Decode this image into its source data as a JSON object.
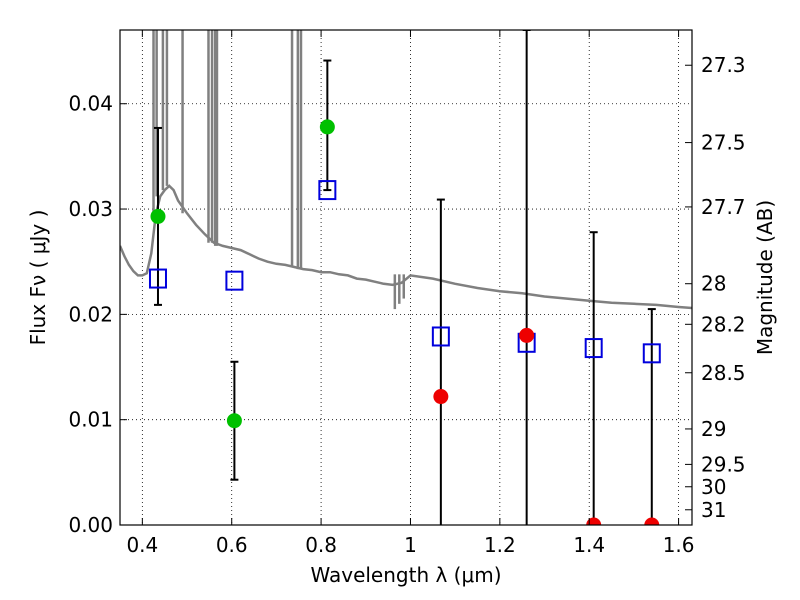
{
  "chart_data": {
    "type": "scatter",
    "xlabel": "Wavelength  λ (μm)",
    "ylabel": "Flux  Fν  ( μJy )",
    "ylabel_right": "Magnitude (AB)",
    "xlim": [
      0.35,
      1.63
    ],
    "ylim": [
      0.0,
      0.047
    ],
    "grid": true,
    "x_ticks": [
      {
        "value": 0.4,
        "label": "0.4"
      },
      {
        "value": 0.6,
        "label": "0.6"
      },
      {
        "value": 0.8,
        "label": "0.8"
      },
      {
        "value": 1.0,
        "label": "1"
      },
      {
        "value": 1.2,
        "label": "1.2"
      },
      {
        "value": 1.4,
        "label": "1.4"
      },
      {
        "value": 1.6,
        "label": "1.6"
      }
    ],
    "y_ticks": [
      {
        "value": 0.0,
        "label": "0.00"
      },
      {
        "value": 0.01,
        "label": "0.01"
      },
      {
        "value": 0.02,
        "label": "0.02"
      },
      {
        "value": 0.03,
        "label": "0.03"
      },
      {
        "value": 0.04,
        "label": "0.04"
      }
    ],
    "y_ticks_right": [
      {
        "value": 27.3,
        "label": "27.3"
      },
      {
        "value": 27.5,
        "label": "27.5"
      },
      {
        "value": 27.7,
        "label": "27.7"
      },
      {
        "value": 28,
        "label": "28"
      },
      {
        "value": 28.2,
        "label": "28.2"
      },
      {
        "value": 28.5,
        "label": "28.5"
      },
      {
        "value": 29,
        "label": "29"
      },
      {
        "value": 29.5,
        "label": "29.5"
      },
      {
        "value": 30,
        "label": "30"
      },
      {
        "value": 31,
        "label": "31"
      }
    ],
    "series": [
      {
        "kind": "model_sed",
        "color": "#808080",
        "x": [
          0.35,
          0.36,
          0.37,
          0.38,
          0.39,
          0.4,
          0.41,
          0.42,
          0.43,
          0.44,
          0.45,
          0.46,
          0.47,
          0.48,
          0.5,
          0.52,
          0.54,
          0.56,
          0.58,
          0.6,
          0.62,
          0.64,
          0.66,
          0.68,
          0.7,
          0.72,
          0.74,
          0.76,
          0.78,
          0.8,
          0.82,
          0.84,
          0.86,
          0.88,
          0.9,
          0.92,
          0.94,
          0.96,
          0.98,
          1.0,
          1.05,
          1.1,
          1.15,
          1.2,
          1.25,
          1.3,
          1.35,
          1.4,
          1.45,
          1.5,
          1.55,
          1.6,
          1.63
        ],
        "y": [
          0.0265,
          0.0255,
          0.0247,
          0.0241,
          0.0237,
          0.0237,
          0.0239,
          0.0258,
          0.0295,
          0.0312,
          0.0318,
          0.0322,
          0.0318,
          0.0308,
          0.0296,
          0.0285,
          0.0276,
          0.0268,
          0.0265,
          0.0263,
          0.0261,
          0.0257,
          0.0253,
          0.025,
          0.0248,
          0.0247,
          0.0245,
          0.0243,
          0.0242,
          0.024,
          0.024,
          0.0238,
          0.0237,
          0.0234,
          0.0233,
          0.0231,
          0.0229,
          0.0228,
          0.023,
          0.0237,
          0.0234,
          0.0229,
          0.0225,
          0.0222,
          0.022,
          0.0217,
          0.0215,
          0.0213,
          0.0211,
          0.021,
          0.0209,
          0.0207,
          0.0206
        ],
        "spikes": [
          {
            "x": 0.425,
            "y": 0.047
          },
          {
            "x": 0.432,
            "y": 0.047
          },
          {
            "x": 0.446,
            "y": 0.047
          },
          {
            "x": 0.455,
            "y": 0.047
          },
          {
            "x": 0.49,
            "y": 0.047
          },
          {
            "x": 0.548,
            "y": 0.047
          },
          {
            "x": 0.556,
            "y": 0.047
          },
          {
            "x": 0.563,
            "y": 0.047
          },
          {
            "x": 0.567,
            "y": 0.047
          },
          {
            "x": 0.735,
            "y": 0.047
          },
          {
            "x": 0.748,
            "y": 0.047
          },
          {
            "x": 0.755,
            "y": 0.047
          }
        ],
        "dips": [
          {
            "x": 0.965,
            "y": 0.0205
          },
          {
            "x": 0.975,
            "y": 0.021
          },
          {
            "x": 0.985,
            "y": 0.0215
          }
        ]
      },
      {
        "kind": "model_fluxes",
        "marker": "open-square",
        "color": "#0000dd",
        "x": [
          0.435,
          0.606,
          0.814,
          1.068,
          1.26,
          1.41,
          1.54
        ],
        "y": [
          0.0234,
          0.0232,
          0.0318,
          0.0179,
          0.0173,
          0.0168,
          0.0163
        ]
      },
      {
        "kind": "detections",
        "marker": "filled-circle",
        "color": "#00c000",
        "x": [
          0.435,
          0.606,
          0.814
        ],
        "y": [
          0.0293,
          0.0099,
          0.0378
        ],
        "err_low": [
          0.0209,
          0.0043,
          0.0318
        ],
        "err_high": [
          0.0377,
          0.0155,
          0.0441
        ]
      },
      {
        "kind": "non_detections",
        "marker": "filled-circle",
        "color": "#ee0000",
        "x": [
          1.068,
          1.26,
          1.41,
          1.54
        ],
        "y": [
          0.0122,
          0.018,
          0.0,
          0.0
        ],
        "err_low": [
          0.0,
          0.0,
          0.0,
          0.0
        ],
        "err_high": [
          0.0309,
          0.047,
          0.0278,
          0.0205
        ]
      }
    ]
  }
}
